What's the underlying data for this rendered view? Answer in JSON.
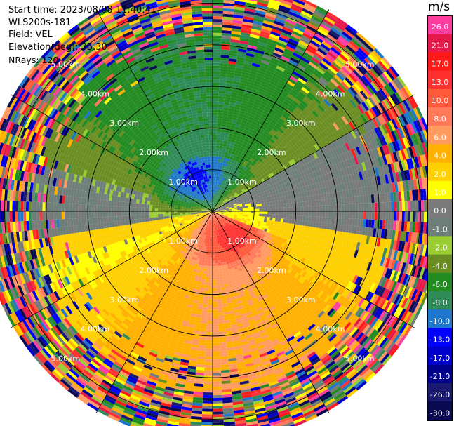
{
  "info": {
    "start_time": "Start time: 2023/08/08 11:40:41",
    "instrument": "WLS200s-181",
    "field": "Field: VEL",
    "elevation": "Elevation(deg): 35.30",
    "nrays": "NRays: 120"
  },
  "colorbar": {
    "title": "m/s",
    "ticks": [
      "26.0",
      "21.0",
      "17.0",
      "13.0",
      "10.0",
      "8.0",
      "6.0",
      "4.0",
      "2.0",
      "1.0",
      "0.0",
      "-1.0",
      "-2.0",
      "-4.0",
      "-6.0",
      "-8.0",
      "-10.0",
      "-13.0",
      "-17.0",
      "-21.0",
      "-26.0",
      "-30.0"
    ],
    "colors": [
      "#ff3ca0",
      "#e6194b",
      "#ff1a1a",
      "#ff3030",
      "#ff5a3c",
      "#ff7a5a",
      "#ff9a60",
      "#ffb000",
      "#ffd000",
      "#ffff00",
      "#7a7a7a",
      "#6e7e78",
      "#9acd32",
      "#6b8e23",
      "#228b22",
      "#2e8b57",
      "#1f77c9",
      "#0000ff",
      "#0000cd",
      "#00008b",
      "#191970",
      "#0a0a50"
    ]
  },
  "chart_data": {
    "type": "heatmap",
    "projection": "polar (PPI)",
    "field": "VEL",
    "units": "m/s",
    "nrays": 120,
    "elevation_deg": 35.3,
    "colorbar_range": [
      -30.0,
      26.0
    ],
    "range_rings_km": [
      1.0,
      2.0,
      3.0,
      4.0,
      5.0
    ],
    "range_labels": [
      "1.00km",
      "2.00km",
      "3.00km",
      "4.00km",
      "5.00km"
    ],
    "max_range_km": 5.6,
    "spokes_deg": [
      0,
      30,
      60,
      90,
      120,
      150,
      180,
      210,
      240,
      270,
      300,
      330
    ],
    "velocity_pattern": {
      "near_north_west": -8.0,
      "north_sector": -6.0,
      "near_south_east": 13.0,
      "south_sector": 4.0,
      "east_west_transition": 0.0,
      "noise_start_km": 4.3
    }
  }
}
